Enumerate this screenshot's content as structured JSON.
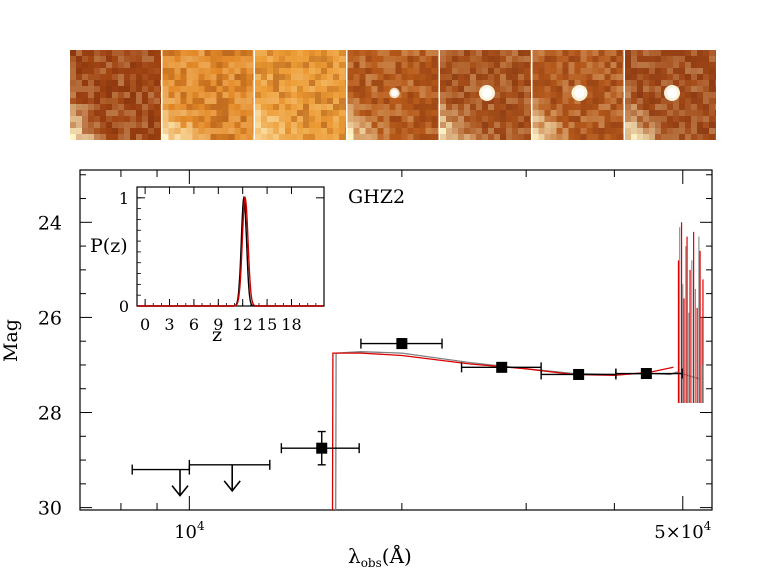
{
  "chart_data": {
    "type": "scatter",
    "title": "GHZ2",
    "xlabel_main": "λ",
    "xlabel_sub": "obs",
    "xlabel_unit": "(Å)",
    "ylabel": "Mag",
    "xscale": "log",
    "xlim": [
      7000,
      55000
    ],
    "ylim": [
      30.05,
      22.9
    ],
    "x_ticks": [
      {
        "value": 10000,
        "base": "10",
        "exp": "4"
      },
      {
        "value": 50000,
        "base": "5×10",
        "exp": "4"
      }
    ],
    "y_ticks": [
      24,
      26,
      28,
      30
    ],
    "detections": [
      {
        "wl": 15400,
        "wl_lo": 13500,
        "wl_hi": 17400,
        "mag": 28.75,
        "err": 0.35
      },
      {
        "wl": 20000,
        "wl_lo": 17500,
        "wl_hi": 22800,
        "mag": 26.55,
        "err": 0.1
      },
      {
        "wl": 27700,
        "wl_lo": 24300,
        "wl_hi": 31500,
        "mag": 27.05,
        "err": 0.06
      },
      {
        "wl": 35600,
        "wl_lo": 31500,
        "wl_hi": 40200,
        "mag": 27.2,
        "err": 0.05
      },
      {
        "wl": 44400,
        "wl_lo": 40200,
        "wl_hi": 49900,
        "mag": 27.18,
        "err": 0.06
      }
    ],
    "upper_limits": [
      {
        "wl": 9700,
        "wl_lo": 8300,
        "wl_hi": 10000,
        "mag": 29.2
      },
      {
        "wl": 11500,
        "wl_lo": 10000,
        "wl_hi": 13000,
        "mag": 29.1
      }
    ],
    "sed_models": [
      {
        "name": "gray-model",
        "color": "#808080",
        "points": [
          [
            16120,
            30.05
          ],
          [
            16140,
            26.75
          ],
          [
            17500,
            26.72
          ],
          [
            20000,
            26.75
          ],
          [
            25000,
            26.95
          ],
          [
            30000,
            27.08
          ],
          [
            35000,
            27.18
          ],
          [
            40000,
            27.2
          ],
          [
            45000,
            27.18
          ],
          [
            48000,
            27.2
          ],
          [
            49000,
            27.15
          ],
          [
            53000,
            27.3
          ]
        ]
      },
      {
        "name": "red-model",
        "color": "#dd0000",
        "points": [
          [
            15950,
            30.05
          ],
          [
            15970,
            26.75
          ],
          [
            17500,
            26.75
          ],
          [
            20000,
            26.8
          ],
          [
            25000,
            26.98
          ],
          [
            30000,
            27.08
          ],
          [
            35000,
            27.2
          ],
          [
            40000,
            27.22
          ],
          [
            45000,
            27.15
          ],
          [
            48500,
            27.05
          ]
        ]
      }
    ],
    "red_emission_lines": [
      49300,
      49800,
      50200,
      50700,
      51200,
      51800,
      52400,
      52900,
      53400
    ],
    "gray_emission_lines": [
      49500,
      50000,
      50500,
      51000,
      51500,
      52100,
      52700,
      53200
    ],
    "inset": {
      "ylabel": "P(z)",
      "xlabel": "z",
      "xlim": [
        -1,
        22
      ],
      "ylim": [
        0,
        1.1
      ],
      "x_ticks": [
        0,
        3,
        6,
        9,
        12,
        15,
        18
      ],
      "y_ticks": [
        0,
        1
      ],
      "peak_z": 12.2,
      "curves": [
        {
          "name": "black-pz",
          "color": "#000000",
          "center": 12.15,
          "sigma": 0.32
        },
        {
          "name": "red-pz",
          "color": "#cc0000",
          "center": 12.3,
          "sigma": 0.35
        }
      ]
    },
    "cutouts": [
      {
        "name": "band-1",
        "base": "#a14513",
        "spot": 0.0
      },
      {
        "name": "band-2",
        "base": "#e48a28",
        "spot": 0.0
      },
      {
        "name": "band-3",
        "base": "#ec9a33",
        "spot": 0.0
      },
      {
        "name": "band-4",
        "base": "#b75a1a",
        "spot": 0.6
      },
      {
        "name": "band-5",
        "base": "#a8501a",
        "spot": 1.0
      },
      {
        "name": "band-6",
        "base": "#b4581b",
        "spot": 1.0
      },
      {
        "name": "band-7",
        "base": "#a24a18",
        "spot": 1.0
      }
    ]
  }
}
